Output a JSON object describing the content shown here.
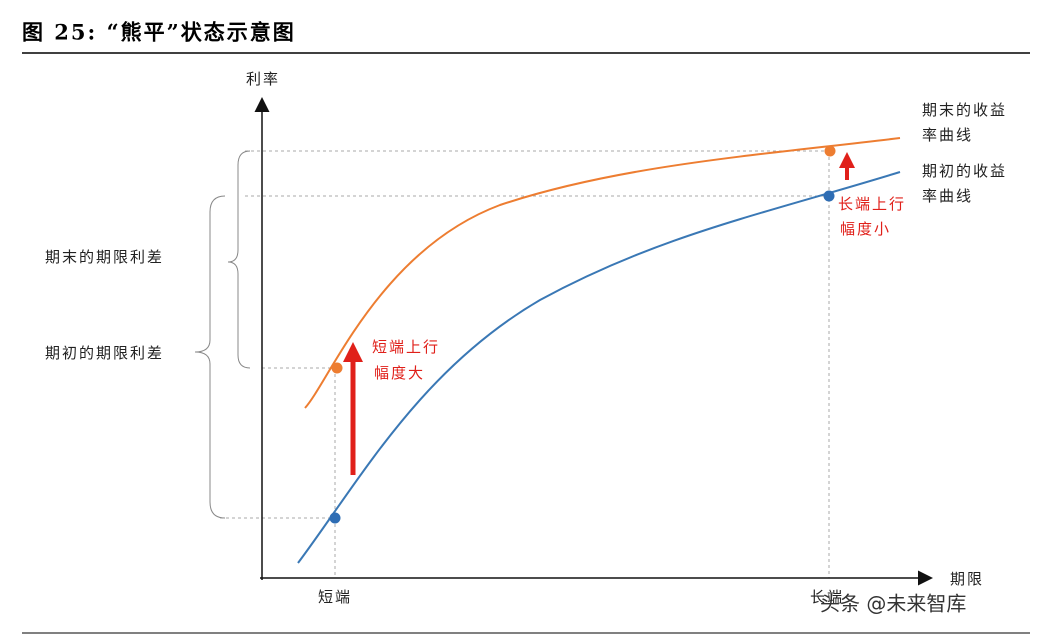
{
  "header": {
    "title": "图 25:  “熊平”状态示意图"
  },
  "axes": {
    "y_label": "利率",
    "x_label": "期限",
    "short_end": "短端",
    "long_end": "长端"
  },
  "curves": {
    "end": {
      "label": [
        "期末的收益",
        "率曲线"
      ]
    },
    "start": {
      "label": [
        "期初的收益",
        "率曲线"
      ]
    }
  },
  "annotations": {
    "long": [
      "长端上行",
      "幅度小"
    ],
    "short": [
      "短端上行",
      "幅度大"
    ]
  },
  "spreads": {
    "end": "期末的期限利差",
    "start": "期初的期限利差"
  },
  "watermark": "头条 @未来智库"
}
